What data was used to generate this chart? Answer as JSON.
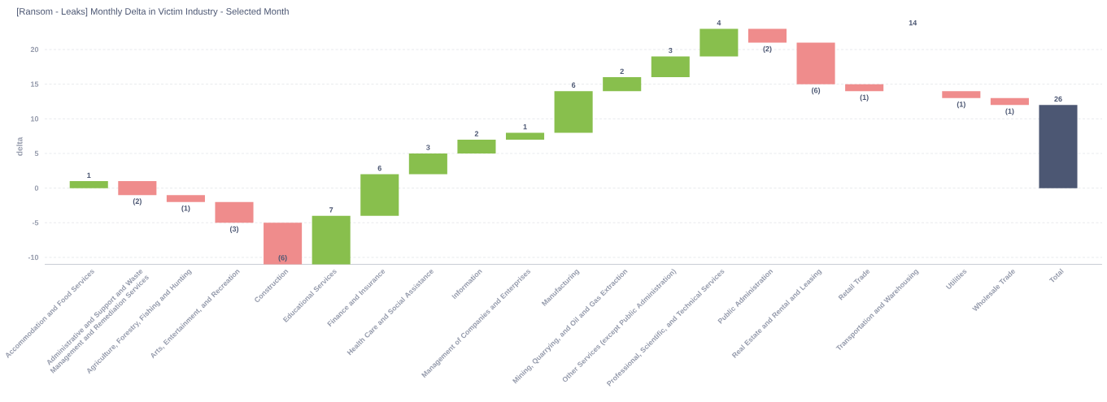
{
  "chart_data": {
    "type": "bar",
    "title": "[Ransom - Leaks] Monthly Delta in Victim Industry - Selected Month",
    "ylabel": "delta",
    "categories": [
      "Accommodation and Food Services",
      "Administrative and Support and Waste Management and Remediation Services",
      "Agriculture, Forestry, Fishing and Hunting",
      "Arts, Entertainment, and Recreation",
      "Construction",
      "Educational Services",
      "Finance and Insurance",
      "Health Care and Social Assistance",
      "Information",
      "Management of Companies and Enterprises",
      "Manufacturing",
      "Mining, Quarrying, and Oil and Gas Extraction",
      "Other Services (except Public Administration)",
      "Professional, Scientific, and Technical Services",
      "Public Administration",
      "Real Estate and Rental and Leasing",
      "Retail Trade",
      "Transportation and Warehousing",
      "Utilities",
      "Wholesale Trade",
      "Total"
    ],
    "values": [
      1,
      -2,
      -1,
      -3,
      -6,
      7,
      6,
      3,
      2,
      1,
      6,
      2,
      3,
      4,
      -2,
      -6,
      -1,
      null,
      -1,
      -1,
      12
    ],
    "base": [
      0,
      1,
      -1,
      -2,
      -5,
      -11,
      -4,
      2,
      5,
      7,
      8,
      14,
      16,
      19,
      23,
      21,
      15,
      null,
      14,
      13,
      0
    ],
    "colors": [
      "#88bf4d",
      "#ef8c8c",
      "#ef8c8c",
      "#ef8c8c",
      "#ef8c8c",
      "#88bf4d",
      "#88bf4d",
      "#88bf4d",
      "#88bf4d",
      "#88bf4d",
      "#88bf4d",
      "#88bf4d",
      "#88bf4d",
      "#88bf4d",
      "#ef8c8c",
      "#ef8c8c",
      "#ef8c8c",
      null,
      "#ef8c8c",
      "#ef8c8c",
      "#4c5773"
    ],
    "value_labels": [
      "1",
      "(2)",
      "(1)",
      "(3)",
      "(6)",
      "7",
      "6",
      "3",
      "2",
      "1",
      "6",
      "2",
      "3",
      "4",
      "(2)",
      "(6)",
      "(1)",
      "14",
      "(1)",
      "(1)",
      null
    ],
    "annotations": [
      {
        "text": "26",
        "x": "Total",
        "y": 12
      }
    ],
    "ylim": [
      -11,
      23
    ],
    "yticks": [
      -10,
      -5,
      0,
      5,
      10,
      15,
      20
    ],
    "grid": "y"
  }
}
